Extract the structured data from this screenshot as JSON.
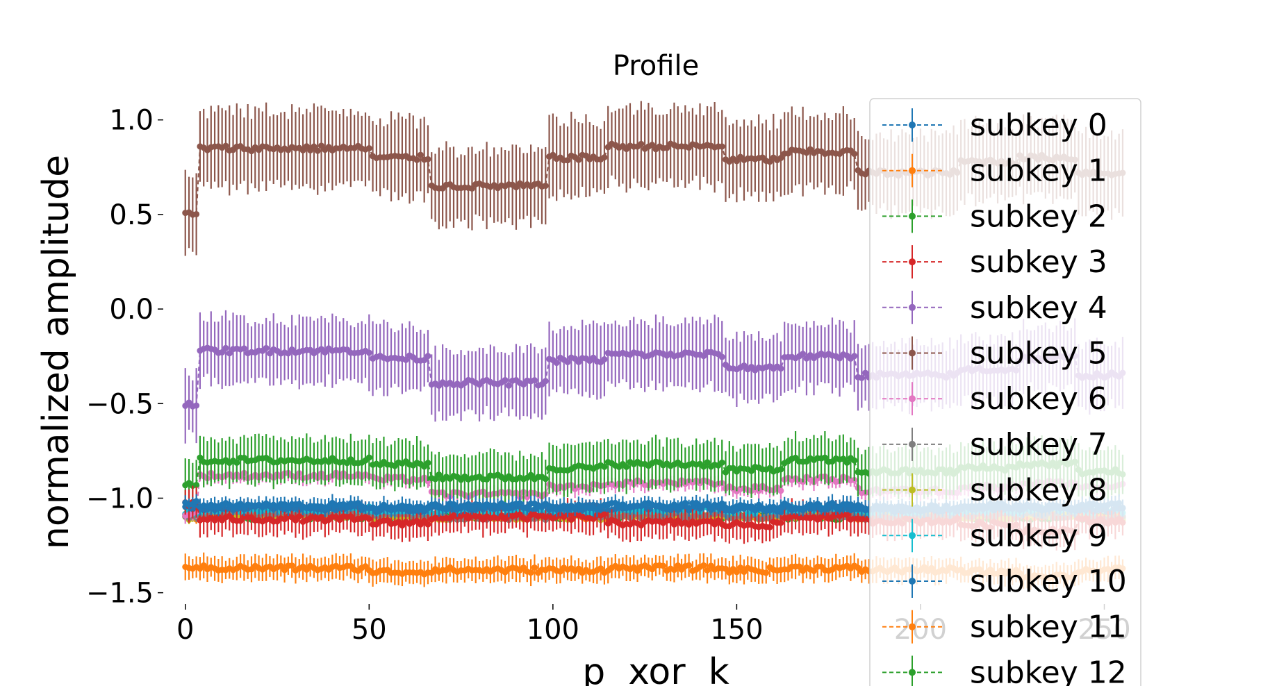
{
  "chart_data": {
    "type": "line",
    "title": "Profile",
    "xlabel": "p  xor  k",
    "ylabel": "normalized amplitude",
    "xlim": [
      -6,
      262
    ],
    "ylim": [
      -1.56,
      1.12
    ],
    "xticks": [
      0,
      50,
      100,
      150,
      200,
      250
    ],
    "yticks": [
      1.0,
      0.5,
      0.0,
      -0.5,
      -1.0,
      -1.5
    ],
    "ytick_labels": [
      "1.0",
      "0.5",
      "0.0",
      "−0.5",
      "−1.0",
      "−1.5"
    ],
    "error_bars": true,
    "grid": false,
    "legend_position": "right (overlapping plot)",
    "x_points": "0..255 (256 points per series)",
    "series": [
      {
        "name": "subkey 0",
        "color": "#1f77b4",
        "segment_means": [
          -1.03,
          -1.04,
          -1.05,
          -1.04,
          -1.05,
          -1.04,
          -1.05,
          -1.04,
          -1.05,
          -1.04,
          -1.05,
          -1.04
        ],
        "errorbar_half_width": 0.04
      },
      {
        "name": "subkey 1",
        "color": "#ff7f0e",
        "segment_means": [
          -1.36,
          -1.37,
          -1.39,
          -1.38,
          -1.38,
          -1.37,
          -1.38,
          -1.37,
          -1.38,
          -1.39,
          -1.41,
          -1.38
        ],
        "errorbar_half_width": 0.06
      },
      {
        "name": "subkey 2",
        "color": "#2ca02c",
        "segment_means": [
          -0.93,
          -0.8,
          -0.82,
          -0.89,
          -0.84,
          -0.82,
          -0.85,
          -0.8,
          -0.86,
          -0.84,
          -0.82,
          -0.86
        ],
        "errorbar_half_width": 0.12
      },
      {
        "name": "subkey 3",
        "color": "#d62728",
        "segment_means": [
          -1.03,
          -1.11,
          -1.13,
          -1.1,
          -1.1,
          -1.13,
          -1.14,
          -1.1,
          -1.12,
          -1.14,
          -1.17,
          -1.12
        ],
        "errorbar_half_width": 0.08
      },
      {
        "name": "subkey 4",
        "color": "#9467bd",
        "segment_means": [
          -0.5,
          -0.22,
          -0.26,
          -0.39,
          -0.27,
          -0.24,
          -0.31,
          -0.25,
          -0.35,
          -0.32,
          -0.26,
          -0.35
        ],
        "errorbar_half_width": 0.17
      },
      {
        "name": "subkey 5",
        "color": "#8c564b",
        "segment_means": [
          0.5,
          0.85,
          0.8,
          0.65,
          0.8,
          0.86,
          0.79,
          0.83,
          0.72,
          0.78,
          0.8,
          0.72
        ],
        "errorbar_half_width": 0.2
      },
      {
        "name": "subkey 6",
        "color": "#e377c2",
        "segment_means": [
          -1.08,
          -0.88,
          -0.9,
          -0.98,
          -0.94,
          -0.92,
          -0.95,
          -0.9,
          -0.96,
          -0.94,
          -0.92,
          -0.94
        ],
        "errorbar_half_width": 0.04
      },
      {
        "name": "subkey 7",
        "color": "#7f7f7f",
        "segment_means": [
          -1.09,
          -1.08,
          -1.09,
          -1.1,
          -1.09,
          -1.09,
          -1.1,
          -1.09,
          -1.1,
          -1.09,
          -1.09,
          -1.1
        ],
        "errorbar_half_width": 0.02
      },
      {
        "name": "subkey 8",
        "color": "#bcbd22",
        "segment_means": [
          -1.1,
          -1.09,
          -1.1,
          -1.1,
          -1.1,
          -1.09,
          -1.1,
          -1.09,
          -1.1,
          -1.1,
          -1.09,
          -1.1
        ],
        "errorbar_half_width": 0.02
      },
      {
        "name": "subkey 9",
        "color": "#17becf",
        "segment_means": [
          -1.07,
          -1.06,
          -1.07,
          -1.07,
          -1.07,
          -1.06,
          -1.07,
          -1.06,
          -1.07,
          -1.07,
          -1.06,
          -1.07
        ],
        "errorbar_half_width": 0.02
      },
      {
        "name": "subkey 10",
        "color": "#1f77b4",
        "segment_means": [
          -1.05,
          -1.05,
          -1.06,
          -1.05,
          -1.05,
          -1.05,
          -1.06,
          -1.05,
          -1.06,
          -1.05,
          -1.05,
          -1.06
        ],
        "errorbar_half_width": 0.03
      },
      {
        "name": "subkey 11",
        "color": "#ff7f0e",
        "segment_means": [
          -1.1,
          -1.09,
          -1.1,
          -1.1,
          -1.1,
          -1.09,
          -1.1,
          -1.09,
          -1.1,
          -1.1,
          -1.09,
          -1.1
        ],
        "errorbar_half_width": 0.02
      },
      {
        "name": "subkey 12",
        "color": "#2ca02c",
        "segment_means": [
          -1.1,
          -1.1,
          -1.1,
          -1.1,
          -1.1,
          -1.1,
          -1.1,
          -1.1,
          -1.1,
          -1.1,
          -1.1,
          -1.1
        ],
        "errorbar_half_width": 0.02
      }
    ],
    "segment_breakpoints": [
      0,
      4,
      51,
      67,
      99,
      115,
      147,
      163,
      183,
      211,
      227,
      243,
      256
    ]
  }
}
